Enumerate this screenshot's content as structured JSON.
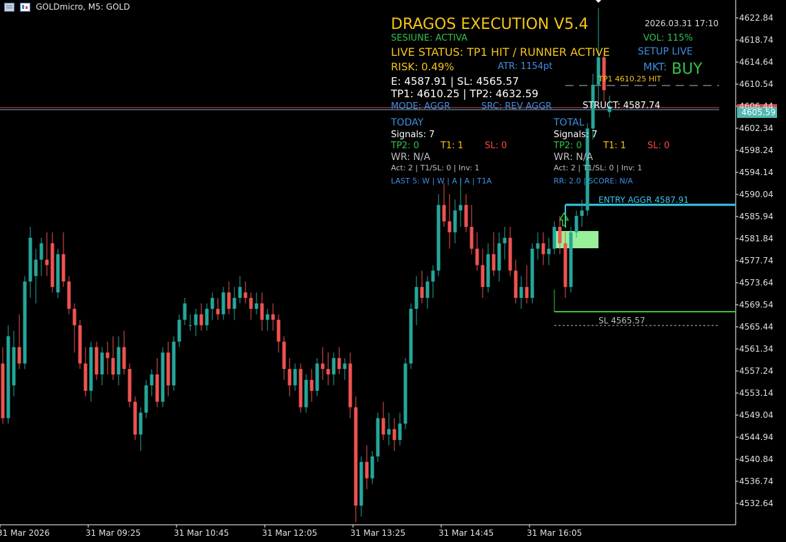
{
  "window": {
    "symbol": "GOLDmicro, M5:  GOLD"
  },
  "overlay": {
    "title": "DRAGOS EXECUTION V5.4",
    "datetime": "2026.03.31 17:10",
    "session": "SESIUNE: ACTIVA",
    "vol": "VOL: 115%",
    "live_status": "LIVE STATUS: TP1 HIT / RUNNER ACTIVE",
    "setup": "SETUP LIVE",
    "risk": "RISK: 0.49%",
    "atr": "ATR: 1154pt",
    "mkt_label": "MKT:",
    "mkt_value": "BUY",
    "entry_sl": "E: 4587.91 | SL: 4565.57",
    "tp_line": "TP1: 4610.25 | TP2: 4632.59",
    "mode": "MODE: AGGR",
    "src": "SRC: REV AGGR",
    "struct": "STRUCT: 4587.74",
    "today": {
      "heading": "TODAY",
      "signals": "Signals: 7",
      "tp2": "TP2: 0",
      "t1": "T1: 1",
      "sl": "SL: 0",
      "wr": "WR: N/A",
      "act": "Act: 2 | T1/SL: 0 | Inv: 1",
      "last5": "LAST 5: W | W | A | A | T1A"
    },
    "total": {
      "heading": "TOTAL",
      "signals": "Signals: 7",
      "tp2": "TP2: 0",
      "t1": "T1: 1",
      "sl": "SL: 0",
      "wr": "WR: N/A",
      "act": "Act: 2 | T1/SL: 0 | Inv: 1",
      "rr": "RR: 2.0 | SCORE: N/A"
    },
    "tp1_hit": "TP1 4610.25 HIT",
    "entry_aggr": "ENTRY AGGR 4587.91",
    "sl_label": "SL 4565.57"
  },
  "price_axis": {
    "labels": [
      "4622.84",
      "4618.74",
      "4614.64",
      "4610.54",
      "4606.44",
      "4602.34",
      "4598.24",
      "4594.14",
      "4590.04",
      "4585.94",
      "4581.84",
      "4577.74",
      "4573.64",
      "4569.54",
      "4565.44",
      "4561.34",
      "4557.24",
      "4553.14",
      "4549.04",
      "4544.94",
      "4540.84",
      "4536.74",
      "4532.64"
    ],
    "current": "4605.59"
  },
  "time_axis": [
    "31 Mar 2026",
    "31 Mar 09:25",
    "31 Mar 10:45",
    "31 Mar 12:05",
    "31 Mar 13:25",
    "31 Mar 14:45",
    "31 Mar 16:05"
  ],
  "colors": {
    "bull": "#26a69a",
    "bear": "#ef5350",
    "accent_cyan": "#39c8e6",
    "sl_green": "#3cc43c",
    "title": "#f5c518",
    "info_blue": "#3f8fe0"
  },
  "chart_data": {
    "type": "candlestick",
    "ylim": [
      4529.5,
      4625.5
    ],
    "candles": [
      [
        4559,
        4562,
        4548,
        4549
      ],
      [
        4549,
        4566,
        4548,
        4564
      ],
      [
        4555,
        4565,
        4553,
        4562
      ],
      [
        4562,
        4568,
        4558,
        4559
      ],
      [
        4559,
        4575,
        4558,
        4574
      ],
      [
        4574,
        4584,
        4571,
        4582
      ],
      [
        4575,
        4580,
        4570,
        4578
      ],
      [
        4578,
        4582,
        4575,
        4581
      ],
      [
        4578,
        4583,
        4575,
        4577
      ],
      [
        4581,
        4583,
        4572,
        4573
      ],
      [
        4572,
        4580,
        4571,
        4579
      ],
      [
        4579,
        4583,
        4573,
        4574
      ],
      [
        4574,
        4575,
        4568,
        4569
      ],
      [
        4569,
        4570,
        4561,
        4566
      ],
      [
        4566,
        4567,
        4558,
        4559
      ],
      [
        4559,
        4562,
        4553,
        4554
      ],
      [
        4554,
        4563,
        4552,
        4562
      ],
      [
        4562,
        4563,
        4556,
        4557
      ],
      [
        4557,
        4562,
        4555,
        4561
      ],
      [
        4561,
        4563,
        4557,
        4560
      ],
      [
        4560,
        4564,
        4556,
        4557
      ],
      [
        4557,
        4564,
        4555,
        4562
      ],
      [
        4562,
        4565,
        4557,
        4558
      ],
      [
        4558,
        4559,
        4551,
        4552
      ],
      [
        4552,
        4553,
        4545,
        4546
      ],
      [
        4546,
        4551,
        4543,
        4550
      ],
      [
        4550,
        4556,
        4549,
        4555
      ],
      [
        4555,
        4558,
        4553,
        4557
      ],
      [
        4557,
        4560,
        4551,
        4552
      ],
      [
        4552,
        4562,
        4551,
        4561
      ],
      [
        4561,
        4563,
        4553,
        4555
      ],
      [
        4555,
        4564,
        4554,
        4563
      ],
      [
        4563,
        4568,
        4562,
        4567
      ],
      [
        4567,
        4571,
        4566,
        4570
      ],
      [
        4566,
        4568,
        4565,
        4566
      ],
      [
        4566,
        4569,
        4564,
        4568
      ],
      [
        4568,
        4570,
        4565,
        4566
      ],
      [
        4566,
        4570,
        4565,
        4569
      ],
      [
        4569,
        4572,
        4567,
        4571
      ],
      [
        4569,
        4571,
        4567,
        4568
      ],
      [
        4568,
        4573,
        4567,
        4572
      ],
      [
        4572,
        4574,
        4568,
        4569
      ],
      [
        4569,
        4573,
        4567,
        4571
      ],
      [
        4571,
        4575,
        4570,
        4573
      ],
      [
        4572,
        4574,
        4570,
        4571
      ],
      [
        4571,
        4572,
        4567,
        4569
      ],
      [
        4569,
        4572,
        4568,
        4570
      ],
      [
        4570,
        4572,
        4565,
        4567
      ],
      [
        4567,
        4569,
        4565,
        4568
      ],
      [
        4568,
        4570,
        4565,
        4567
      ],
      [
        4567,
        4568,
        4561,
        4563
      ],
      [
        4563,
        4564,
        4556,
        4558
      ],
      [
        4558,
        4560,
        4553,
        4555
      ],
      [
        4555,
        4559,
        4554,
        4558
      ],
      [
        4558,
        4559,
        4550,
        4551
      ],
      [
        4551,
        4557,
        4550,
        4556
      ],
      [
        4556,
        4558,
        4552,
        4554
      ],
      [
        4554,
        4560,
        4553,
        4559
      ],
      [
        4559,
        4562,
        4556,
        4558
      ],
      [
        4558,
        4561,
        4555,
        4557
      ],
      [
        4557,
        4561,
        4555,
        4560
      ],
      [
        4560,
        4562,
        4557,
        4558
      ],
      [
        4558,
        4560,
        4556,
        4559
      ],
      [
        4559,
        4561,
        4549,
        4551
      ],
      [
        4551,
        4553,
        4530,
        4533
      ],
      [
        4533,
        4542,
        4531,
        4541
      ],
      [
        4541,
        4544,
        4536,
        4538
      ],
      [
        4538,
        4543,
        4537,
        4542
      ],
      [
        4542,
        4550,
        4541,
        4549
      ],
      [
        4549,
        4552,
        4545,
        4546
      ],
      [
        4546,
        4550,
        4544,
        4547
      ],
      [
        4547,
        4549,
        4543,
        4545
      ],
      [
        4545,
        4550,
        4544,
        4548
      ],
      [
        4548,
        4560,
        4547,
        4559
      ],
      [
        4559,
        4570,
        4558,
        4569
      ],
      [
        4569,
        4575,
        4566,
        4573
      ],
      [
        4573,
        4576,
        4570,
        4571
      ],
      [
        4571,
        4575,
        4569,
        4574
      ],
      [
        4574,
        4577,
        4571,
        4576
      ],
      [
        4576,
        4590,
        4575,
        4588
      ],
      [
        4588,
        4592,
        4584,
        4585
      ],
      [
        4585,
        4590,
        4580,
        4583
      ],
      [
        4583,
        4589,
        4581,
        4587
      ],
      [
        4587,
        4593,
        4584,
        4588
      ],
      [
        4588,
        4590,
        4583,
        4584
      ],
      [
        4584,
        4588,
        4579,
        4580
      ],
      [
        4580,
        4583,
        4576,
        4577
      ],
      [
        4577,
        4580,
        4571,
        4573
      ],
      [
        4573,
        4581,
        4572,
        4579
      ],
      [
        4579,
        4583,
        4575,
        4576
      ],
      [
        4576,
        4583,
        4574,
        4581
      ],
      [
        4581,
        4584,
        4578,
        4582
      ],
      [
        4582,
        4584,
        4575,
        4576
      ],
      [
        4576,
        4578,
        4570,
        4571
      ],
      [
        4571,
        4575,
        4569,
        4573
      ],
      [
        4573,
        4577,
        4570,
        4571
      ],
      [
        4571,
        4581,
        4570,
        4580
      ],
      [
        4580,
        4583,
        4578,
        4581
      ],
      [
        4581,
        4583,
        4577,
        4579
      ],
      [
        4579,
        4582,
        4577,
        4580
      ],
      [
        4580,
        4585,
        4579,
        4584
      ],
      [
        4584,
        4586,
        4579,
        4581
      ],
      [
        4581,
        4583,
        4571,
        4573
      ],
      [
        4573,
        4584,
        4572,
        4583
      ],
      [
        4583,
        4587,
        4582,
        4586
      ],
      [
        4586,
        4589,
        4584,
        4587
      ],
      [
        4587,
        4603,
        4586,
        4602
      ],
      [
        4602,
        4612,
        4600,
        4610
      ],
      [
        4610,
        4624,
        4607,
        4615
      ],
      [
        4615,
        4616,
        4607,
        4609
      ],
      [
        4605,
        4608,
        4604,
        4606
      ]
    ]
  }
}
